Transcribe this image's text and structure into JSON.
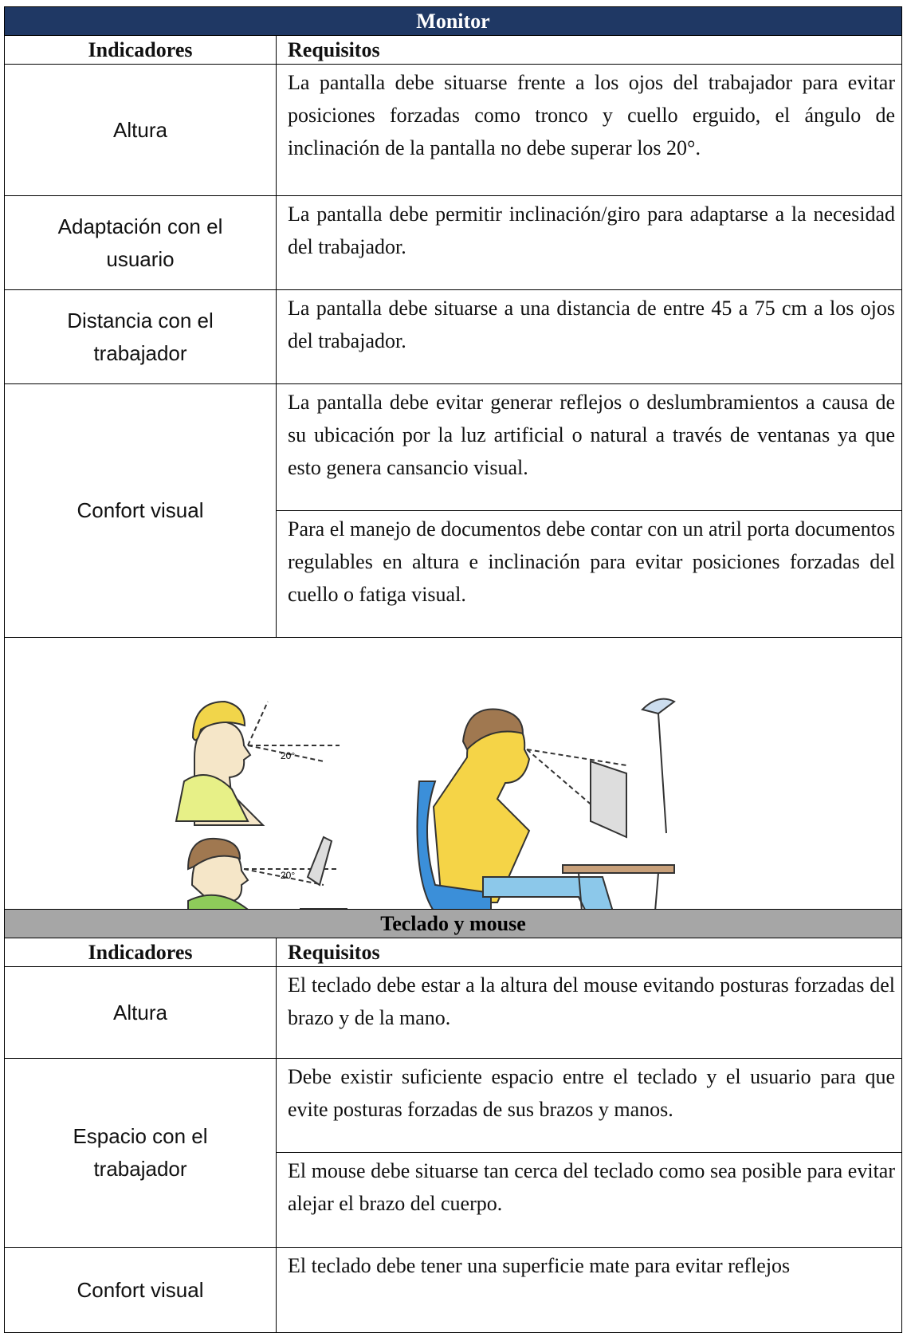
{
  "sections": [
    {
      "title": "Monitor",
      "header": [
        "Indicadores",
        "Requisitos"
      ],
      "rows": [
        {
          "indicator": "Altura",
          "requirements": [
            "La pantalla debe situarse frente a los ojos del trabajador para evitar posiciones forzadas como tronco y cuello erguido, el ángulo de inclinación de la pantalla no debe superar los 20°."
          ]
        },
        {
          "indicator": "Adaptación con el usuario",
          "requirements": [
            "La pantalla debe permitir inclinación/giro para adaptarse a la necesidad del trabajador."
          ]
        },
        {
          "indicator": "Distancia con el trabajador",
          "requirements": [
            "La pantalla debe situarse a una distancia de entre 45 a 75 cm a los ojos del trabajador."
          ]
        },
        {
          "indicator": "Confort visual",
          "requirements": [
            "La pantalla debe evitar generar reflejos o deslumbramientos a causa de su ubicación por la luz artificial o natural a través de ventanas ya que esto genera cansancio visual.",
            "Para el manejo de documentos debe contar con un atril porta documentos regulables en altura e inclinación para evitar posiciones forzadas del cuello o fatiga visual."
          ]
        }
      ],
      "figure": {
        "angle_labels": [
          "20°",
          "20°"
        ]
      }
    },
    {
      "title": "Teclado y mouse",
      "header": [
        "Indicadores",
        "Requisitos"
      ],
      "rows": [
        {
          "indicator": "Altura",
          "requirements": [
            "El teclado debe estar a la altura del mouse evitando posturas forzadas del brazo y de la mano."
          ]
        },
        {
          "indicator": "Espacio con el trabajador",
          "requirements": [
            "Debe existir suficiente espacio entre el teclado y el usuario para que evite posturas forzadas de sus brazos y manos.",
            "El mouse debe situarse tan cerca del teclado como sea posible para evitar alejar el brazo del cuerpo."
          ]
        },
        {
          "indicator": "Confort visual",
          "requirements": [
            "El teclado debe tener una superficie mate para evitar reflejos"
          ]
        }
      ]
    }
  ]
}
